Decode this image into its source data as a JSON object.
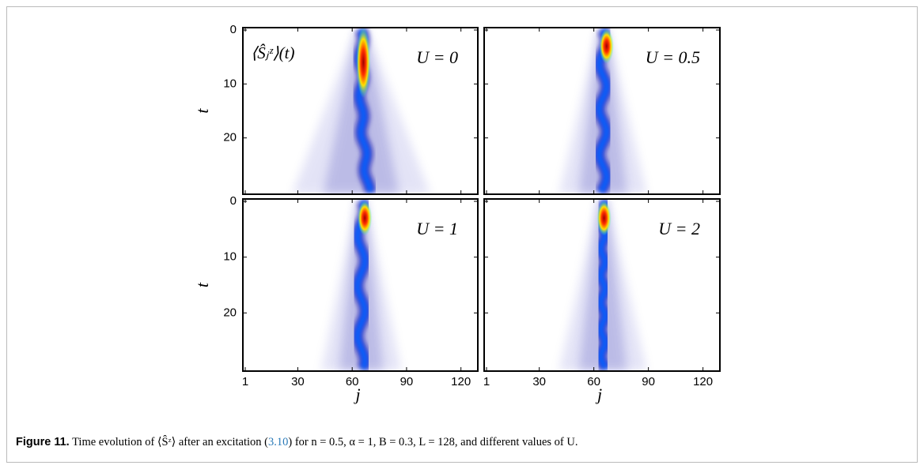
{
  "figure": {
    "panels": [
      {
        "label": "U = 0",
        "inset": "⟨Ŝⱼᶻ⟩(t)"
      },
      {
        "label": "U = 0.5"
      },
      {
        "label": "U = 1"
      },
      {
        "label": "U = 2"
      }
    ],
    "xlim": [
      1,
      128
    ],
    "ylim": [
      0,
      30
    ],
    "xticks": [
      1,
      30,
      60,
      90,
      120
    ],
    "yticks": [
      0,
      10,
      20
    ],
    "xlabel": "j",
    "ylabel": "t",
    "caption": {
      "label": "Figure 11.",
      "text_before": "Time evolution of ⟨Ŝᶻ⟩ after an excitation (",
      "ref": "3.10",
      "text_after": ") for n = 0.5, α = 1, B = 0.3, L = 128, and different values of U."
    }
  }
}
